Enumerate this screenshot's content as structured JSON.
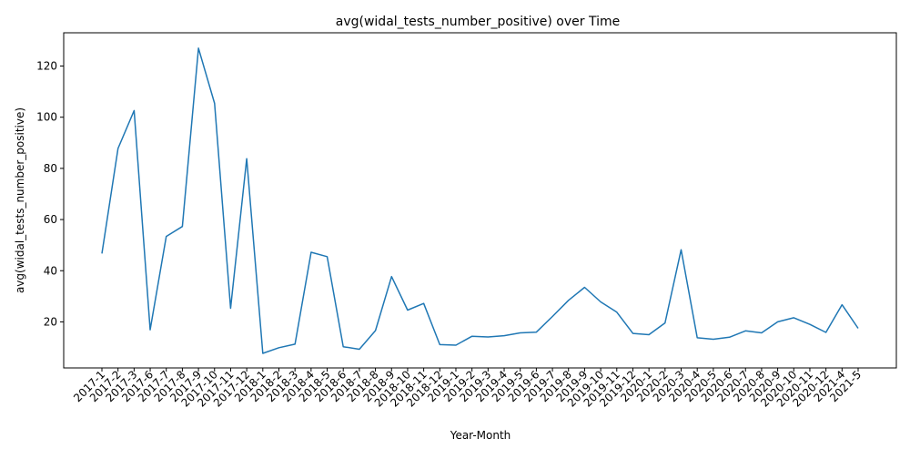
{
  "chart_data": {
    "type": "line",
    "title": "avg(widal_tests_number_positive) over Time",
    "xlabel": "Year-Month",
    "ylabel": "avg(widal_tests_number_positive)",
    "ylim": [
      2,
      133
    ],
    "yticks": [
      20,
      40,
      60,
      80,
      100,
      120
    ],
    "grid": false,
    "color": "#1f77b4",
    "categories": [
      "2017-1",
      "2017-2",
      "2017-3",
      "2017-6",
      "2017-7",
      "2017-8",
      "2017-9",
      "2017-10",
      "2017-11",
      "2017-12",
      "2018-1",
      "2018-2",
      "2018-3",
      "2018-4",
      "2018-5",
      "2018-6",
      "2018-7",
      "2018-8",
      "2018-9",
      "2018-10",
      "2018-11",
      "2018-12",
      "2019-1",
      "2019-2",
      "2019-3",
      "2019-4",
      "2019-5",
      "2019-6",
      "2019-7",
      "2019-8",
      "2019-9",
      "2019-10",
      "2019-11",
      "2019-12",
      "2020-1",
      "2020-2",
      "2020-3",
      "2020-4",
      "2020-5",
      "2020-6",
      "2020-7",
      "2020-8",
      "2020-9",
      "2020-10",
      "2020-11",
      "2020-12",
      "2021-4",
      "2021-5"
    ],
    "values": [
      46.7,
      87.8,
      102.6,
      16.9,
      53.4,
      57.3,
      127.0,
      105.4,
      25.3,
      83.8,
      7.7,
      9.9,
      11.3,
      47.2,
      45.5,
      10.3,
      9.3,
      16.6,
      37.7,
      24.6,
      27.2,
      11.1,
      10.9,
      14.4,
      14.1,
      14.6,
      15.7,
      16.0,
      22.1,
      28.4,
      33.5,
      27.8,
      23.8,
      15.5,
      15.0,
      19.6,
      48.2,
      13.8,
      13.2,
      14.0,
      16.5,
      15.7,
      20.0,
      21.6,
      19.0,
      15.9,
      26.7,
      17.5
    ]
  }
}
